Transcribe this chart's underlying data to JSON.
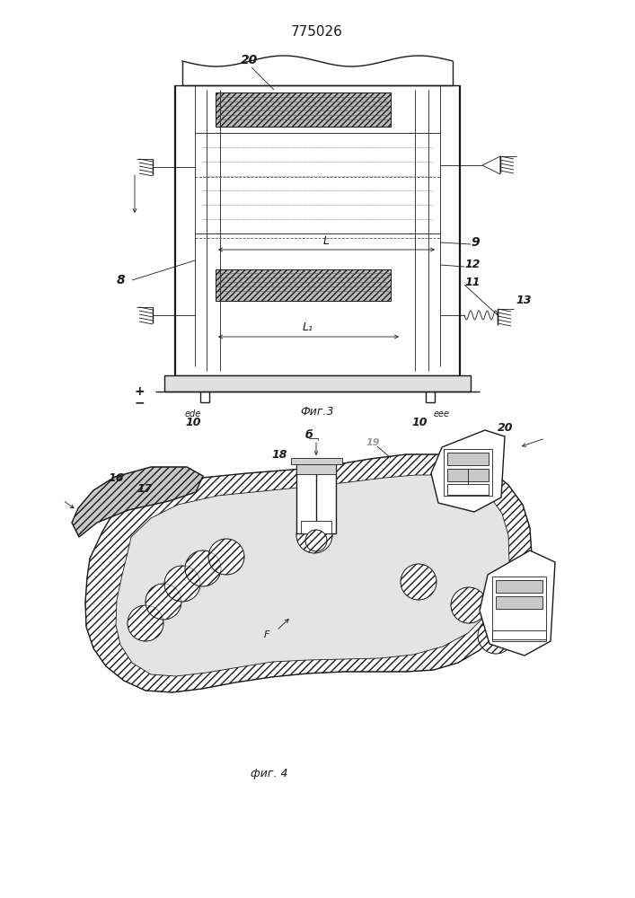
{
  "title": "775026",
  "fig1_caption": "Фиг.3",
  "fig2_caption": "фиг. 4",
  "lc": "#1a1a1a",
  "bg": "#ffffff",
  "lw_thin": 0.6,
  "lw_med": 1.0,
  "lw_thick": 1.6
}
